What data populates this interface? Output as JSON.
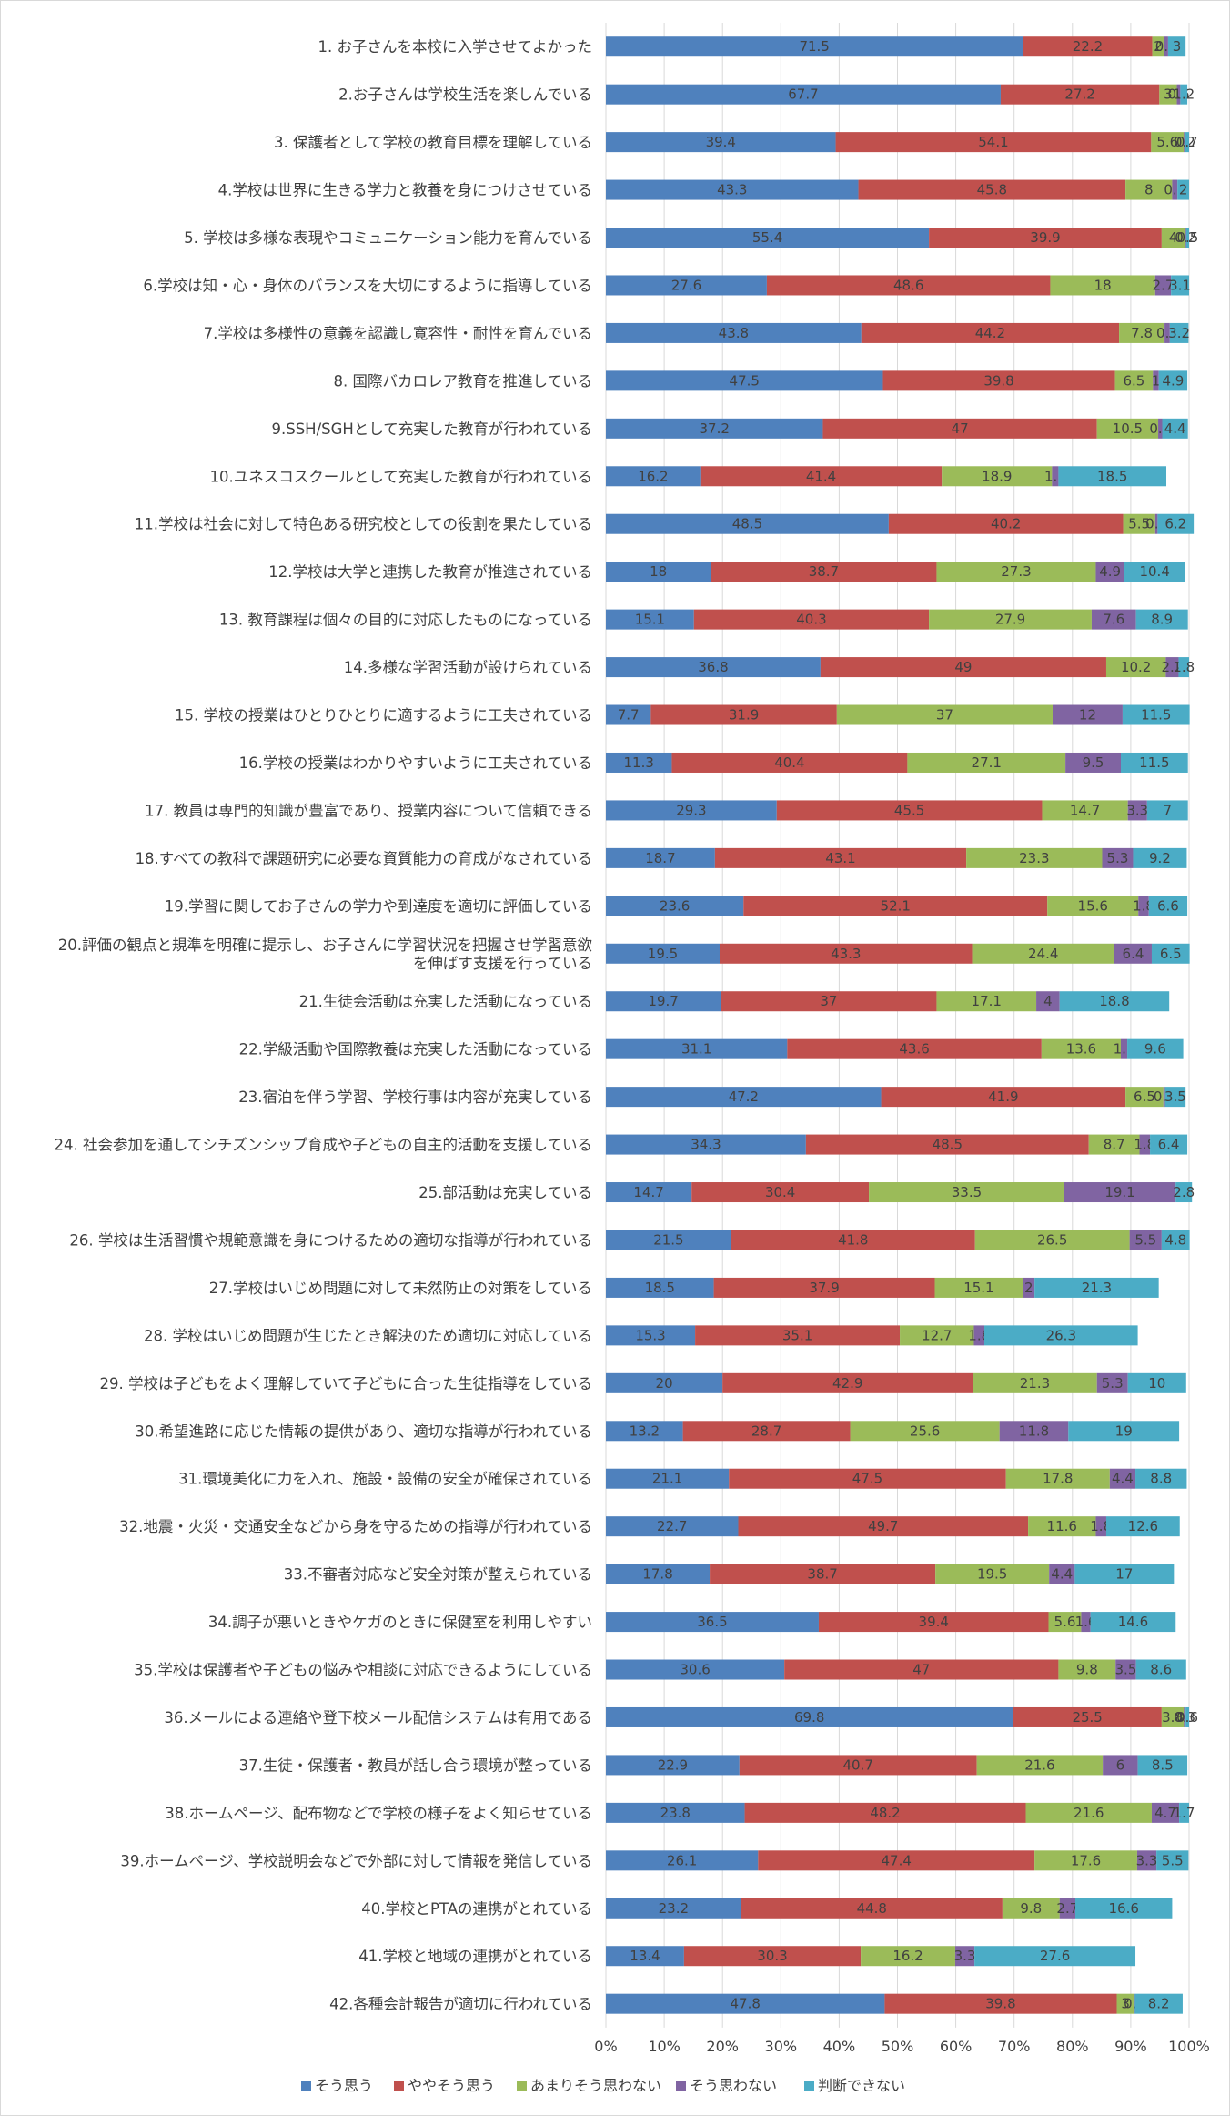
{
  "chart_data": {
    "type": "bar",
    "orientation": "horizontal",
    "stacked": "percent",
    "categories": [
      "1. お子さんを本校に入学させてよかった",
      "2.お子さんは学校生活を楽しんでいる",
      "3. 保護者として学校の教育目標を理解している",
      "4.学校は世界に生きる学力と教養を身につけさせている",
      "5. 学校は多様な表現やコミュニケーション能力を育んでいる",
      "6.学校は知・心・身体のバランスを大切にするように指導している",
      "7.学校は多様性の意義を認識し寛容性・耐性を育んでいる",
      "8. 国際バカロレア教育を推進している",
      "9.SSH/SGHとして充実した教育が行われている",
      "10.ユネスコスクールとして充実した教育が行われている",
      "11.学校は社会に対して特色ある研究校としての役割を果たしている",
      "12.学校は大学と連携した教育が推進されている",
      "13. 教育課程は個々の目的に対応したものになっている",
      "14.多様な学習活動が設けられている",
      "15. 学校の授業はひとりひとりに適するように工夫されている",
      "16.学校の授業はわかりやすいように工夫されている",
      "17. 教員は専門的知識が豊富であり、授業内容について信頼できる",
      "18.すべての教科で課題研究に必要な資質能力の育成がなされている",
      "19.学習に関してお子さんの学力や到達度を適切に評価している",
      "20.評価の観点と規準を明確に提示し、お子さんに学習状況を把握させ学習意欲\nを伸ばす支援を行っている",
      "21.生徒会活動は充実した活動になっている",
      "22.学級活動や国際教養は充実した活動になっている",
      "23.宿泊を伴う学習、学校行事は内容が充実している",
      "24. 社会参加を通してシチズンシップ育成や子どもの自主的活動を支援している",
      "25.部活動は充実している",
      "26. 学校は生活習慣や規範意識を身につけるための適切な指導が行われている",
      "27.学校はいじめ問題に対して未然防止の対策をしている",
      "28. 学校はいじめ問題が生じたとき解決のため適切に対応している",
      "29. 学校は子どもをよく理解していて子どもに合った生徒指導をしている",
      "30.希望進路に応じた情報の提供があり、適切な指導が行われている",
      "31.環境美化に力を入れ、施設・設備の安全が確保されている",
      "32.地震・火災・交通安全などから身を守るための指導が行われている",
      "33.不審者対応など安全対策が整えられている",
      "34.調子が悪いときやケガのときに保健室を利用しやすい",
      "35.学校は保護者や子どもの悩みや相談に対応できるようにしている",
      "36.メールによる連絡や登下校メール配信システムは有用である",
      "37.生徒・保護者・教員が話し合う環境が整っている",
      "38.ホームページ、配布物などで学校の様子をよく知らせている",
      "39.ホームページ、学校説明会などで外部に対して情報を発信している",
      "40.学校とPTAの連携がとれている",
      "41.学校と地域の連携がとれている",
      "42.各種会計報告が適切に行われている"
    ],
    "series": [
      {
        "name": "そう思う",
        "color": "#4f81bd",
        "values": [
          71.5,
          67.7,
          39.4,
          43.3,
          55.4,
          27.6,
          43.8,
          47.5,
          37.2,
          16.2,
          48.5,
          18,
          15.1,
          36.8,
          7.7,
          11.3,
          29.3,
          18.7,
          23.6,
          19.5,
          19.7,
          31.1,
          47.2,
          34.3,
          14.7,
          21.5,
          18.5,
          15.3,
          20,
          13.2,
          21.1,
          22.7,
          17.8,
          36.5,
          30.6,
          69.8,
          22.9,
          23.8,
          26.1,
          23.2,
          13.4,
          47.8
        ]
      },
      {
        "name": "ややそう思う",
        "color": "#c0504d",
        "values": [
          22.2,
          27.2,
          54.1,
          45.8,
          39.9,
          48.6,
          44.2,
          39.8,
          47,
          41.4,
          40.2,
          38.7,
          40.3,
          49,
          31.9,
          40.4,
          45.5,
          43.1,
          52.1,
          43.3,
          37,
          43.6,
          41.9,
          48.5,
          30.4,
          41.8,
          37.9,
          35.1,
          42.9,
          28.7,
          47.5,
          49.7,
          38.7,
          39.4,
          47,
          25.5,
          40.7,
          48.2,
          47.4,
          44.8,
          30.3,
          39.8
        ]
      },
      {
        "name": "あまりそう思わない",
        "color": "#9bbb59",
        "values": [
          2,
          3,
          5.6,
          8,
          4,
          18,
          7.8,
          6.5,
          10.5,
          18.9,
          5.5,
          27.3,
          27.9,
          10.2,
          37,
          27.1,
          14.7,
          23.3,
          15.6,
          24.4,
          17.1,
          13.6,
          6.5,
          8.7,
          33.5,
          26.5,
          15.1,
          12.7,
          21.3,
          25.6,
          17.8,
          11.6,
          19.5,
          5.6,
          9.8,
          3.8,
          21.6,
          21.6,
          17.6,
          9.8,
          16.2,
          3
        ]
      },
      {
        "name": "そう思わない",
        "color": "#8064a2",
        "values": [
          0.7,
          0.6,
          0.2,
          0.9,
          0.2,
          2.7,
          0.9,
          1,
          0.7,
          1.1,
          0.4,
          4.9,
          7.6,
          2.2,
          12,
          9.5,
          3.3,
          5.3,
          1.8,
          6.4,
          4,
          1.1,
          0.3,
          1.8,
          19.1,
          5.5,
          2,
          1.8,
          5.3,
          11.8,
          4.4,
          1.8,
          4.4,
          1.6,
          3.5,
          0.3,
          6,
          4.7,
          3.3,
          2.7,
          3.3,
          0.1
        ]
      },
      {
        "name": "判断できない",
        "color": "#4bacc6",
        "values": [
          3,
          1.2,
          0.7,
          2,
          0.5,
          3.1,
          3.2,
          4.9,
          4.4,
          18.5,
          6.2,
          10.4,
          8.9,
          1.8,
          11.5,
          11.5,
          7,
          9.2,
          6.6,
          6.5,
          18.8,
          9.6,
          3.5,
          6.4,
          2.8,
          4.8,
          21.3,
          26.3,
          10,
          19,
          8.8,
          12.6,
          17,
          14.6,
          8.6,
          0.6,
          8.5,
          1.7,
          5.5,
          16.6,
          27.6,
          8.2
        ]
      }
    ],
    "xticks": [
      "0%",
      "10%",
      "20%",
      "30%",
      "40%",
      "50%",
      "60%",
      "70%",
      "80%",
      "90%",
      "100%"
    ],
    "xlim": [
      0,
      100
    ],
    "grid": "vertical",
    "legend_position": "bottom-left",
    "title": "",
    "xlabel": "",
    "ylabel": ""
  }
}
